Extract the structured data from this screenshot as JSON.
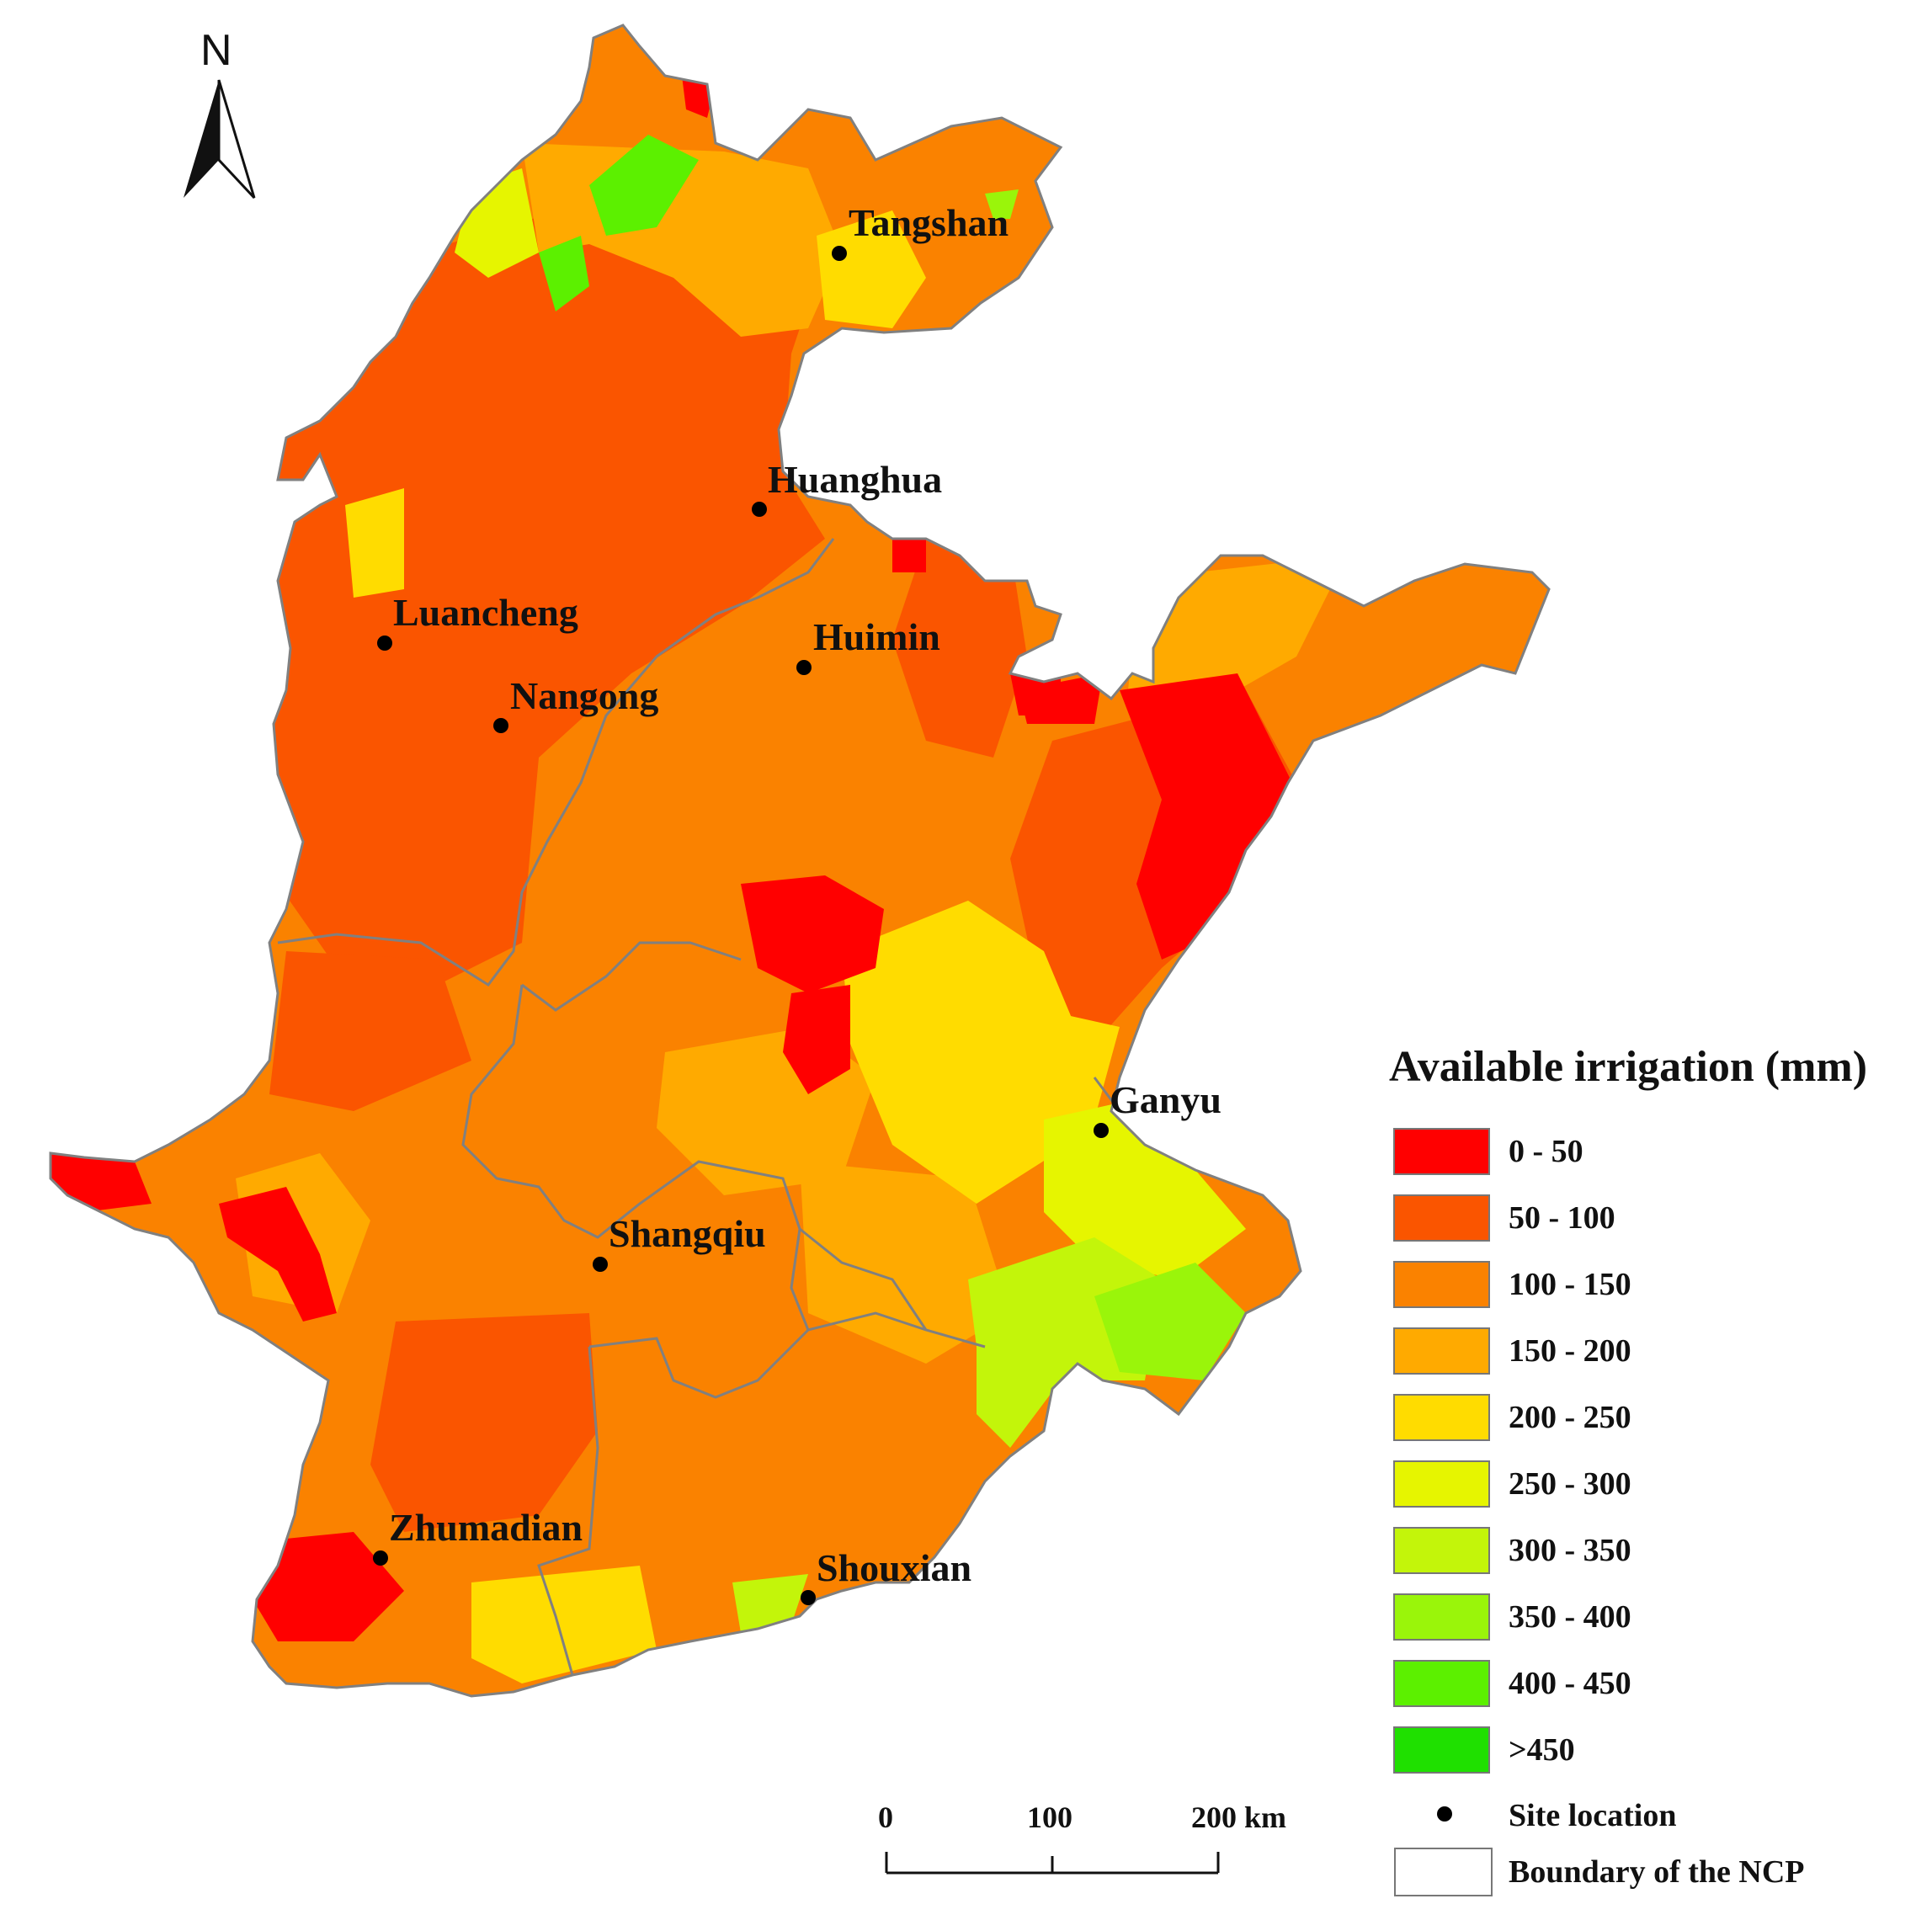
{
  "north_label": "N",
  "legend": {
    "title": "Available irrigation (mm)",
    "classes": [
      {
        "label": "0 - 50",
        "color": "#ff0000"
      },
      {
        "label": "50 - 100",
        "color": "#fa5500"
      },
      {
        "label": "100 - 150",
        "color": "#fa8200"
      },
      {
        "label": "150 - 200",
        "color": "#ffaa00"
      },
      {
        "label": "200 - 250",
        "color": "#ffdc00"
      },
      {
        "label": "250 - 300",
        "color": "#e6f500"
      },
      {
        "label": "300 - 350",
        "color": "#c3f50a"
      },
      {
        "label": "350 - 400",
        "color": "#9af50a"
      },
      {
        "label": "400 - 450",
        "color": "#5cf000"
      },
      {
        "label": ">450",
        "color": "#1fe000"
      }
    ],
    "site_label": "Site location",
    "boundary_label": "Boundary of the NCP"
  },
  "sites": [
    {
      "name": "Tangshan"
    },
    {
      "name": "Huanghua"
    },
    {
      "name": "Luancheng"
    },
    {
      "name": "Huimin"
    },
    {
      "name": "Nangong"
    },
    {
      "name": "Ganyu"
    },
    {
      "name": "Shangqiu"
    },
    {
      "name": "Zhumadian"
    },
    {
      "name": "Shouxian"
    }
  ],
  "scale_bar": {
    "labels": [
      "0",
      "100",
      "200 km"
    ]
  }
}
